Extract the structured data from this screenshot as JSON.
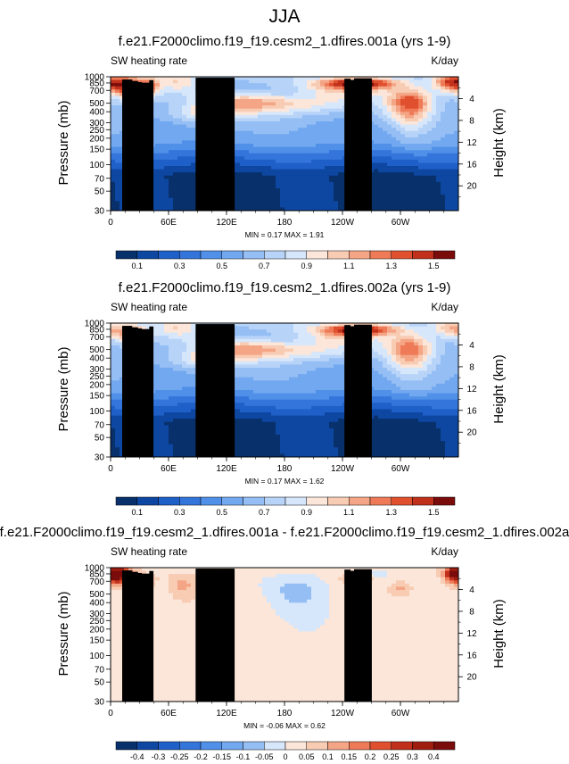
{
  "title": "JJA",
  "chart_data": [
    {
      "type": "heatmap",
      "title": "f.e21.F2000climo.f19_f19.cesm2_1.dfires.001a (yrs 1-9)",
      "left_label": "SW heating rate",
      "units": "K/day",
      "ylabel": "Pressure (mb)",
      "y2label": "Height (km)",
      "xticks": [
        "0",
        "60E",
        "120E",
        "180",
        "120W",
        "60W"
      ],
      "xtick_values": [
        0,
        60,
        120,
        180,
        240,
        300
      ],
      "xlim": [
        0,
        360
      ],
      "yticks": [
        "30",
        "50",
        "70",
        "100",
        "150",
        "200",
        "250",
        "300",
        "400",
        "500",
        "700",
        "850",
        "1000"
      ],
      "ytick_values": [
        30,
        50,
        70,
        100,
        150,
        200,
        250,
        300,
        400,
        500,
        700,
        850,
        1000
      ],
      "ylim": [
        30,
        1000
      ],
      "y2ticks": [
        "20",
        "16",
        "12",
        "8",
        "4"
      ],
      "y2tick_values": [
        20,
        16,
        12,
        8,
        4
      ],
      "stats": "MIN =  0.17  MAX =  1.91",
      "min": 0.17,
      "max": 1.91,
      "colorbar_labels": [
        "0.1",
        "0.3",
        "0.5",
        "0.7",
        "0.9",
        "1.1",
        "1.3",
        "1.5"
      ],
      "levels": [
        0.1,
        0.2,
        0.3,
        0.4,
        0.5,
        0.6,
        0.7,
        0.8,
        0.9,
        1.0,
        1.1,
        1.2,
        1.3,
        1.4,
        1.5
      ],
      "colors": [
        "#08306b",
        "#0d47a1",
        "#1f5fc8",
        "#3475db",
        "#5090e8",
        "#72a8ef",
        "#94bef4",
        "#b7d3f8",
        "#d6e6fb",
        "#fbe6d9",
        "#f8cbb3",
        "#f4a585",
        "#ee7a57",
        "#e0502f",
        "#c0301a",
        "#7a0c0c"
      ],
      "features": [
        {
          "lon": 70,
          "p": 900,
          "amp": 0.25,
          "sx": 14,
          "sp": 150
        },
        {
          "lon": 16,
          "p": 780,
          "amp": 0.75,
          "sx": 12,
          "sp": 150
        },
        {
          "lon": 40,
          "p": 780,
          "amp": 0.5,
          "sx": 8,
          "sp": 130
        },
        {
          "lon": 140,
          "p": 500,
          "amp": 0.45,
          "sx": 35,
          "sp": 90
        },
        {
          "lon": 95,
          "p": 380,
          "amp": 0.3,
          "sx": 22,
          "sp": 60
        },
        {
          "lon": 200,
          "p": 470,
          "amp": 0.2,
          "sx": 35,
          "sp": 80
        },
        {
          "lon": 258,
          "p": 840,
          "amp": 0.9,
          "sx": 28,
          "sp": 90
        },
        {
          "lon": 310,
          "p": 500,
          "amp": 0.7,
          "sx": 16,
          "sp": 160
        },
        {
          "lon": 352,
          "p": 860,
          "amp": 0.65,
          "sx": 12,
          "sp": 120
        },
        {
          "lon": 235,
          "p": 640,
          "amp": 0.2,
          "sx": 30,
          "sp": 120
        }
      ]
    },
    {
      "type": "heatmap",
      "title": "f.e21.F2000climo.f19_f19.cesm2_1.dfires.002a (yrs 1-9)",
      "left_label": "SW heating rate",
      "units": "K/day",
      "ylabel": "Pressure (mb)",
      "y2label": "Height (km)",
      "xticks": [
        "0",
        "60E",
        "120E",
        "180",
        "120W",
        "60W"
      ],
      "xtick_values": [
        0,
        60,
        120,
        180,
        240,
        300
      ],
      "xlim": [
        0,
        360
      ],
      "yticks": [
        "30",
        "50",
        "70",
        "100",
        "150",
        "200",
        "250",
        "300",
        "400",
        "500",
        "700",
        "850",
        "1000"
      ],
      "ytick_values": [
        30,
        50,
        70,
        100,
        150,
        200,
        250,
        300,
        400,
        500,
        700,
        850,
        1000
      ],
      "ylim": [
        30,
        1000
      ],
      "y2ticks": [
        "20",
        "16",
        "12",
        "8",
        "4"
      ],
      "y2tick_values": [
        20,
        16,
        12,
        8,
        4
      ],
      "stats": "MIN =  0.17  MAX =  1.62",
      "min": 0.17,
      "max": 1.62,
      "colorbar_labels": [
        "0.1",
        "0.3",
        "0.5",
        "0.7",
        "0.9",
        "1.1",
        "1.3",
        "1.5"
      ],
      "levels": [
        0.1,
        0.2,
        0.3,
        0.4,
        0.5,
        0.6,
        0.7,
        0.8,
        0.9,
        1.0,
        1.1,
        1.2,
        1.3,
        1.4,
        1.5
      ],
      "colors": [
        "#08306b",
        "#0d47a1",
        "#1f5fc8",
        "#3475db",
        "#5090e8",
        "#72a8ef",
        "#94bef4",
        "#b7d3f8",
        "#d6e6fb",
        "#fbe6d9",
        "#f8cbb3",
        "#f4a585",
        "#ee7a57",
        "#e0502f",
        "#c0301a",
        "#7a0c0c"
      ],
      "features": [
        {
          "lon": 70,
          "p": 900,
          "amp": 0.25,
          "sx": 14,
          "sp": 150
        },
        {
          "lon": 20,
          "p": 760,
          "amp": 0.55,
          "sx": 12,
          "sp": 120
        },
        {
          "lon": 140,
          "p": 500,
          "amp": 0.45,
          "sx": 35,
          "sp": 90
        },
        {
          "lon": 95,
          "p": 380,
          "amp": 0.3,
          "sx": 22,
          "sp": 60
        },
        {
          "lon": 200,
          "p": 470,
          "amp": 0.2,
          "sx": 35,
          "sp": 80
        },
        {
          "lon": 258,
          "p": 840,
          "amp": 0.85,
          "sx": 28,
          "sp": 90
        },
        {
          "lon": 310,
          "p": 500,
          "amp": 0.6,
          "sx": 16,
          "sp": 160
        },
        {
          "lon": 352,
          "p": 860,
          "amp": 0.35,
          "sx": 12,
          "sp": 120
        },
        {
          "lon": 235,
          "p": 640,
          "amp": 0.2,
          "sx": 30,
          "sp": 120
        }
      ]
    },
    {
      "type": "heatmap",
      "title": "f.e21.F2000climo.f19_f19.cesm2_1.dfires.001a - f.e21.F2000climo.f19_f19.cesm2_1.dfires.002a",
      "left_label": "SW heating rate",
      "units": "K/day",
      "ylabel": "Pressure (mb)",
      "y2label": "Height (km)",
      "xticks": [
        "0",
        "60E",
        "120E",
        "180",
        "120W",
        "60W"
      ],
      "xtick_values": [
        0,
        60,
        120,
        180,
        240,
        300
      ],
      "xlim": [
        0,
        360
      ],
      "yticks": [
        "30",
        "50",
        "70",
        "100",
        "150",
        "200",
        "250",
        "300",
        "400",
        "500",
        "700",
        "850",
        "1000"
      ],
      "ytick_values": [
        30,
        50,
        70,
        100,
        150,
        200,
        250,
        300,
        400,
        500,
        700,
        850,
        1000
      ],
      "ylim": [
        30,
        1000
      ],
      "y2ticks": [
        "20",
        "16",
        "12",
        "8",
        "4"
      ],
      "y2tick_values": [
        20,
        16,
        12,
        8,
        4
      ],
      "stats": "MIN =  -0.06  MAX =  0.62",
      "min": -0.06,
      "max": 0.62,
      "colorbar_labels": [
        "-0.4",
        "-0.3",
        "-0.25",
        "-0.2",
        "-0.15",
        "-0.1",
        "-0.05",
        "0",
        "0.05",
        "0.1",
        "0.15",
        "0.2",
        "0.25",
        "0.3",
        "0.4"
      ],
      "levels": [
        -0.4,
        -0.3,
        -0.25,
        -0.2,
        -0.15,
        -0.1,
        -0.05,
        0,
        0.05,
        0.1,
        0.15,
        0.2,
        0.25,
        0.3,
        0.4
      ],
      "colors": [
        "#08306b",
        "#0d47a1",
        "#1f5fc8",
        "#3475db",
        "#5090e8",
        "#72a8ef",
        "#94bef4",
        "#d6e6fb",
        "#fbe6d9",
        "#f8cbb3",
        "#f4a585",
        "#ee7a57",
        "#e0502f",
        "#c0301a",
        "#a01e10",
        "#7a0c0c"
      ],
      "features": [
        {
          "lon": 8,
          "p": 840,
          "amp": 0.5,
          "sx": 9,
          "sp": 120
        },
        {
          "lon": 30,
          "p": 700,
          "amp": 0.12,
          "sx": 10,
          "sp": 100
        },
        {
          "lon": 75,
          "p": 620,
          "amp": 0.08,
          "sx": 10,
          "sp": 150
        },
        {
          "lon": 255,
          "p": 770,
          "amp": 0.15,
          "sx": 10,
          "sp": 80
        },
        {
          "lon": 300,
          "p": 590,
          "amp": 0.1,
          "sx": 8,
          "sp": 80
        },
        {
          "lon": 355,
          "p": 860,
          "amp": 0.3,
          "sx": 7,
          "sp": 110
        },
        {
          "lon": 195,
          "p": 560,
          "amp": -0.09,
          "sx": 22,
          "sp": 220
        },
        {
          "lon": 270,
          "p": 860,
          "amp": -0.06,
          "sx": 12,
          "sp": 60
        }
      ]
    }
  ]
}
